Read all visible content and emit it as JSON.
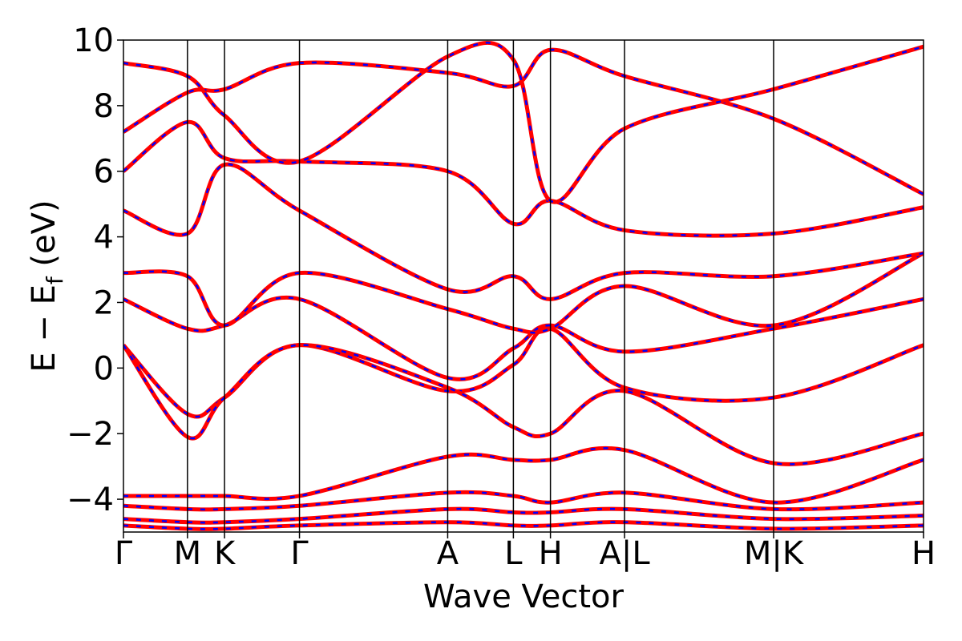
{
  "chart_data": {
    "type": "line",
    "title": "",
    "xlabel": "Wave Vector",
    "ylabel": "E − E_f (eV)",
    "ylabel_parts": {
      "lead": "E − E",
      "sub": "f",
      "tail": " (eV)"
    },
    "ylim": [
      -5,
      10
    ],
    "yticks": [
      {
        "value": -4,
        "label": "−4"
      },
      {
        "value": -2,
        "label": "−2"
      },
      {
        "value": 0,
        "label": "0"
      },
      {
        "value": 2,
        "label": "2"
      },
      {
        "value": 4,
        "label": "4"
      },
      {
        "value": 6,
        "label": "6"
      },
      {
        "value": 8,
        "label": "8"
      },
      {
        "value": 10,
        "label": "10"
      }
    ],
    "xlim": [
      0,
      9.5
    ],
    "kpoints": [
      {
        "label": "Γ",
        "x": 0.0
      },
      {
        "label": "M",
        "x": 0.76
      },
      {
        "label": "K",
        "x": 1.2
      },
      {
        "label": "Γ",
        "x": 2.09
      },
      {
        "label": "A",
        "x": 3.85
      },
      {
        "label": "L",
        "x": 4.63
      },
      {
        "label": "H",
        "x": 5.07
      },
      {
        "label": "A|L",
        "x": 5.95
      },
      {
        "label": "M|K",
        "x": 7.72
      },
      {
        "label": "H",
        "x": 9.5
      }
    ],
    "series": [
      {
        "color": "#ff0000",
        "style": "solid"
      },
      {
        "color": "#0000ff",
        "style": "dashed"
      }
    ],
    "bands": [
      {
        "x": [
          0,
          0.76,
          1.2,
          2.09,
          3.85,
          4.63,
          5.07,
          5.95,
          7.72,
          9.5
        ],
        "y": [
          0.7,
          -1.4,
          -0.9,
          0.7,
          -0.7,
          0.1,
          1.2,
          -0.6,
          -0.9,
          0.7
        ]
      },
      {
        "x": [
          0,
          0.76,
          1.2,
          2.09,
          3.85,
          4.63,
          5.07,
          5.95,
          7.72,
          9.5
        ],
        "y": [
          2.1,
          1.2,
          1.3,
          2.1,
          -0.3,
          0.6,
          1.3,
          0.5,
          1.2,
          2.1
        ]
      },
      {
        "x": [
          0,
          0.76,
          1.2,
          2.09,
          3.85,
          4.63,
          5.07,
          5.95,
          7.72,
          9.5
        ],
        "y": [
          2.9,
          2.8,
          1.3,
          2.9,
          1.8,
          1.2,
          1.2,
          2.5,
          1.3,
          3.5
        ]
      },
      {
        "x": [
          0,
          0.76,
          1.2,
          2.09,
          3.85,
          4.63,
          5.07,
          5.95,
          7.72,
          9.5
        ],
        "y": [
          0.7,
          -2.1,
          -0.9,
          0.7,
          -0.6,
          -1.8,
          -2.0,
          -0.7,
          -2.9,
          -2.0
        ]
      },
      {
        "x": [
          0,
          0.76,
          1.2,
          2.09,
          3.85,
          4.63,
          5.07,
          5.95,
          7.72,
          9.5
        ],
        "y": [
          -3.9,
          -3.9,
          -3.9,
          -3.9,
          -2.7,
          -2.8,
          -2.8,
          -2.5,
          -4.1,
          -2.8
        ]
      },
      {
        "x": [
          0,
          0.76,
          1.2,
          2.09,
          3.85,
          4.63,
          5.07,
          5.95,
          7.72,
          9.5
        ],
        "y": [
          -4.2,
          -4.3,
          -4.3,
          -4.2,
          -3.8,
          -3.9,
          -4.1,
          -3.8,
          -4.3,
          -4.1
        ]
      },
      {
        "x": [
          0,
          0.76,
          1.2,
          2.09,
          3.85,
          4.63,
          5.07,
          5.95,
          7.72,
          9.5
        ],
        "y": [
          -4.6,
          -4.7,
          -4.7,
          -4.6,
          -4.3,
          -4.4,
          -4.4,
          -4.3,
          -4.6,
          -4.5
        ]
      },
      {
        "x": [
          0,
          0.76,
          1.2,
          2.09,
          3.85,
          4.63,
          5.07,
          5.95,
          7.72,
          9.5
        ],
        "y": [
          -4.8,
          -4.9,
          -4.9,
          -4.8,
          -4.7,
          -4.8,
          -4.8,
          -4.7,
          -4.9,
          -4.8
        ]
      },
      {
        "x": [
          0,
          0.76,
          1.2,
          2.09,
          3.85,
          4.63,
          5.07,
          5.95,
          7.72,
          9.5
        ],
        "y": [
          4.8,
          4.1,
          6.2,
          4.8,
          2.4,
          2.8,
          2.1,
          2.9,
          2.8,
          3.5
        ]
      },
      {
        "x": [
          0,
          0.76,
          1.2,
          2.09,
          3.85,
          4.63,
          5.07,
          5.95,
          7.72,
          9.5
        ],
        "y": [
          6.0,
          7.5,
          6.4,
          6.3,
          6.0,
          4.4,
          5.1,
          4.2,
          4.1,
          4.9
        ]
      },
      {
        "x": [
          0,
          0.76,
          1.2,
          2.09,
          3.85,
          4.63,
          5.07,
          5.95,
          7.72,
          9.5
        ],
        "y": [
          7.2,
          8.4,
          8.5,
          9.3,
          9.0,
          8.6,
          9.7,
          8.9,
          7.6,
          5.3
        ]
      },
      {
        "x": [
          0,
          0.76,
          1.2,
          2.09,
          3.85,
          4.63,
          5.07,
          5.95,
          7.72,
          9.5
        ],
        "y": [
          9.3,
          8.9,
          7.7,
          6.3,
          9.5,
          9.4,
          5.1,
          7.3,
          8.5,
          9.8
        ]
      }
    ]
  }
}
